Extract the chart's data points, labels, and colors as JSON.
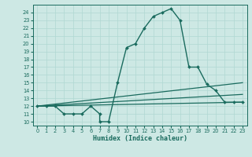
{
  "xlabel": "Humidex (Indice chaleur)",
  "background_color": "#cde8e4",
  "grid_color": "#b0d8d2",
  "line_color": "#1a6b5e",
  "xlim": [
    -0.5,
    23.5
  ],
  "ylim": [
    9.5,
    25.0
  ],
  "xticks": [
    0,
    1,
    2,
    3,
    4,
    5,
    6,
    7,
    8,
    9,
    10,
    11,
    12,
    13,
    14,
    15,
    16,
    17,
    18,
    19,
    20,
    21,
    22,
    23
  ],
  "yticks": [
    10,
    11,
    12,
    13,
    14,
    15,
    16,
    17,
    18,
    19,
    20,
    21,
    22,
    23,
    24
  ],
  "series": [
    {
      "x": [
        0,
        1,
        2,
        3,
        4,
        5,
        6,
        7,
        7,
        8,
        9,
        10,
        11,
        12,
        13,
        14,
        15,
        16,
        17,
        18,
        19,
        20,
        21,
        22,
        23
      ],
      "y": [
        12,
        12,
        12,
        11,
        11,
        11,
        12,
        11,
        10,
        10,
        15,
        19.5,
        20,
        22,
        23.5,
        24,
        24.5,
        23,
        17,
        17,
        14.8,
        14,
        12.5,
        12.5,
        12.5
      ],
      "marker": "D",
      "markersize": 2.0,
      "linewidth": 1.0
    },
    {
      "x": [
        0,
        23
      ],
      "y": [
        12,
        15.0
      ],
      "linewidth": 0.9
    },
    {
      "x": [
        0,
        23
      ],
      "y": [
        12,
        13.5
      ],
      "linewidth": 0.9
    },
    {
      "x": [
        0,
        23
      ],
      "y": [
        12,
        12.5
      ],
      "linewidth": 0.9
    }
  ]
}
